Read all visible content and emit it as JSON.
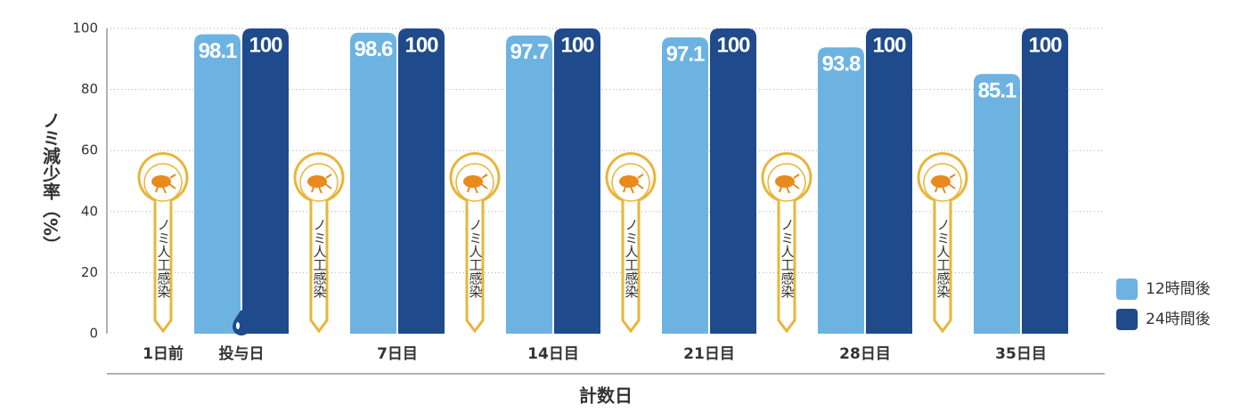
{
  "chart_data": {
    "type": "bar",
    "y_label": "ノミ減少率（%）",
    "x_label": "計数日",
    "annotation": "ノミ人工感染",
    "categories": [
      "1日前",
      "投与日",
      "7日目",
      "14日目",
      "21日目",
      "28日目",
      "35日目"
    ],
    "series": [
      {
        "name": "12時間後",
        "color": "#6db3e2",
        "values": [
          null,
          98.1,
          98.6,
          97.7,
          97.1,
          93.8,
          85.1
        ]
      },
      {
        "name": "24時間後",
        "color": "#1f4a8c",
        "values": [
          null,
          100,
          100,
          100,
          100,
          100,
          100
        ]
      }
    ],
    "ylim": [
      0,
      100
    ],
    "yticks": [
      0,
      20,
      40,
      60,
      80,
      100
    ],
    "grid": true
  }
}
